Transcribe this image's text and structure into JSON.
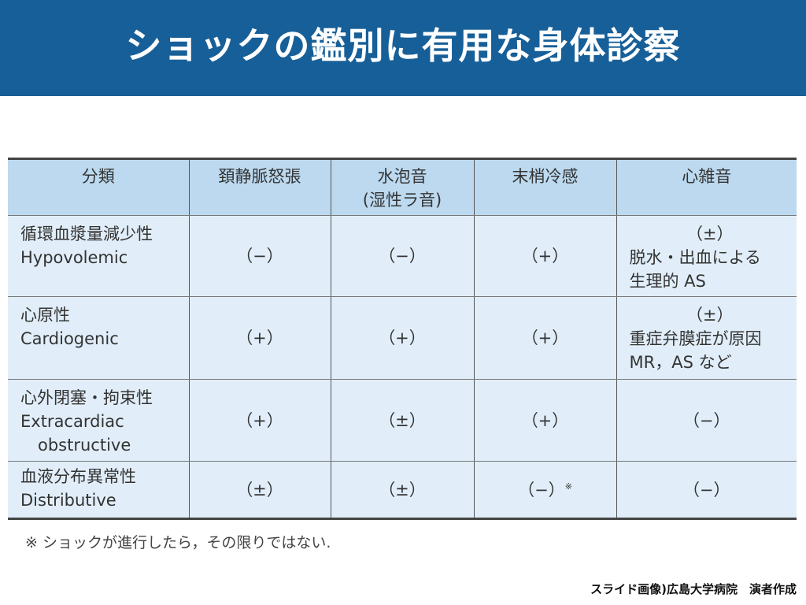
{
  "title": "ショックの鑑別に有用な身体診察",
  "colors": {
    "title_bar": "#175f98",
    "header_bg": "#bcd9ef",
    "body_bg": "#e1eef9"
  },
  "table": {
    "headers": [
      "分類",
      "頚静脈怒張",
      "水泡音",
      "(湿性ラ音)",
      "末梢冷感",
      "心雑音"
    ],
    "rows": [
      {
        "cat_ja": "循環血漿量減少性",
        "cat_en": "Hypovolemic",
        "jvd": "（−）",
        "rales": "（−）",
        "cold": "（+）",
        "cold_mark": "",
        "murmur": "（±）",
        "murmur_note1": "脱水・出血による",
        "murmur_note2": "生理的 AS"
      },
      {
        "cat_ja": "心原性",
        "cat_en": "Cardiogenic",
        "jvd": "（+）",
        "rales": "（+）",
        "cold": "（+）",
        "cold_mark": "",
        "murmur": "（±）",
        "murmur_note1": "重症弁膜症が原因",
        "murmur_note2": "MR，AS など"
      },
      {
        "cat_ja": "心外閉塞・拘束性",
        "cat_en": "Extracardiac",
        "cat_en2": "obstructive",
        "jvd": "（+）",
        "rales": "（±）",
        "cold": "（+）",
        "cold_mark": "",
        "murmur": "（−）"
      },
      {
        "cat_ja": "血液分布異常性",
        "cat_en": "Distributive",
        "jvd": "（±）",
        "rales": "（±）",
        "cold": "（−）",
        "cold_mark": "※",
        "murmur": "（−）"
      }
    ]
  },
  "footnote": "※ ショックが進行したら，その限りではない.",
  "credit": "スライド画像)広島大学病院　演者作成"
}
